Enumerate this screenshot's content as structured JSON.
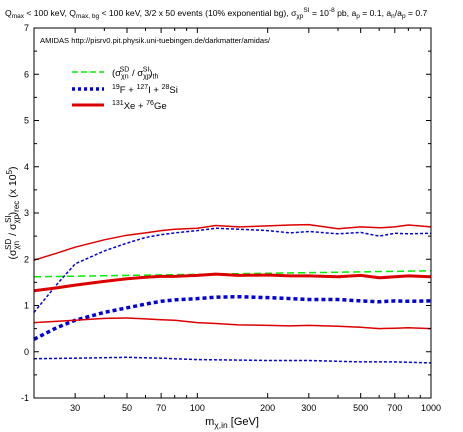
{
  "chart_data": {
    "type": "line",
    "title": "Q_max < 100 keV, Q_max,bg < 100 keV, 3/2 x 50 events (10% exponential bg), σ_χp^SI = 10^-8 pb, a_p = 0.1, a_n/a_p = 0.7",
    "title_parts": {
      "p1": "Q",
      "p1_sub": "max",
      "p2": " < 100 keV, Q",
      "p2_sub": "max, bg",
      "p3": " < 100 keV, 3/2 x 50 events (10% exponential bg), σ",
      "p3_sub": "χp",
      "p3_sup": "SI",
      "p4": " = 10",
      "p4_sup": "-8",
      "p5": " pb, a",
      "p5_sub": "p",
      "p6": " = 0.1, a",
      "p6_sub": "n",
      "p7": "/a",
      "p7_sub": "p",
      "p8": " = 0.7"
    },
    "annotation": "AMIDAS   http://pisrv0.pit.physik.uni-tuebingen.de/darkmatter/amidas/",
    "xlabel": {
      "base": "m",
      "sub": "χ,in",
      "rest": " [GeV]"
    },
    "ylabel": {
      "open": "(σ",
      "sub1": "χn",
      "sup1": "SD",
      "mid": " / σ",
      "sub2": "χp",
      "sup2": "SI",
      "close": ")",
      "sub3": "rec",
      "tail": " (x 10",
      "sup3": "5",
      "end": ")"
    },
    "x_scale": "log",
    "xlim": [
      20,
      1000
    ],
    "ylim": [
      -1,
      7
    ],
    "x_ticks": [
      30,
      50,
      70,
      100,
      200,
      300,
      500,
      700,
      1000
    ],
    "x_tick_labels": [
      "30",
      "50",
      "70",
      "100",
      "200",
      "300",
      "500",
      "700",
      "1000"
    ],
    "y_ticks": [
      -1,
      0,
      1,
      2,
      3,
      4,
      5,
      6,
      7
    ],
    "y_tick_labels": [
      "-1",
      "0",
      "1",
      "2",
      "3",
      "4",
      "5",
      "6",
      "7"
    ],
    "legend": {
      "placement": "top-left",
      "entries": [
        {
          "name_parts": [
            "(σ",
            "χn",
            "SD",
            " / σ",
            "χp",
            "SI",
            ")",
            "th"
          ],
          "color": "#00ee00",
          "style": "dashed"
        },
        {
          "name_parts": [
            "19",
            "F + ",
            "127",
            "I + ",
            "28",
            "Si"
          ],
          "color": "#0000dd",
          "style": "dotted"
        },
        {
          "name_parts": [
            "131",
            "Xe + ",
            "76",
            "Ge"
          ],
          "color": "#dd0000",
          "style": "solid"
        }
      ]
    },
    "series": [
      {
        "name": "(σχn^SD / σχp^SI)th",
        "color": "#00ee00",
        "style": "dashed",
        "width": 1.5,
        "x": [
          20,
          1000
        ],
        "y": [
          1.62,
          1.75
        ]
      },
      {
        "name": "19F + 127I + 28Si",
        "color": "#0000dd",
        "style": "dotted",
        "width": 3.5,
        "x": [
          20,
          25,
          30,
          40,
          50,
          60,
          70,
          80,
          100,
          120,
          150,
          200,
          250,
          300,
          400,
          500,
          600,
          700,
          800,
          1000
        ],
        "y": [
          0.27,
          0.52,
          0.68,
          0.85,
          0.95,
          1.03,
          1.09,
          1.12,
          1.15,
          1.18,
          1.19,
          1.17,
          1.15,
          1.13,
          1.13,
          1.1,
          1.08,
          1.1,
          1.09,
          1.1
        ]
      },
      {
        "name": "19F + 127I + 28Si upper",
        "color": "#0000dd",
        "style": "dotted",
        "width": 1.5,
        "x": [
          20,
          25,
          30,
          40,
          50,
          60,
          70,
          80,
          100,
          120,
          150,
          200,
          250,
          300,
          400,
          500,
          600,
          700,
          800,
          1000
        ],
        "y": [
          0.85,
          1.45,
          1.9,
          2.18,
          2.35,
          2.47,
          2.53,
          2.57,
          2.62,
          2.67,
          2.65,
          2.62,
          2.57,
          2.6,
          2.55,
          2.58,
          2.5,
          2.56,
          2.55,
          2.56
        ]
      },
      {
        "name": "19F + 127I + 28Si lower",
        "color": "#0000dd",
        "style": "dotted",
        "width": 1.5,
        "x": [
          20,
          30,
          50,
          70,
          100,
          150,
          200,
          300,
          500,
          700,
          1000
        ],
        "y": [
          -0.15,
          -0.14,
          -0.12,
          -0.14,
          -0.17,
          -0.18,
          -0.19,
          -0.19,
          -0.22,
          -0.22,
          -0.24
        ]
      },
      {
        "name": "131Xe + 76Ge",
        "color": "#dd0000",
        "style": "solid",
        "width": 3,
        "x": [
          20,
          25,
          30,
          40,
          50,
          60,
          70,
          80,
          100,
          120,
          150,
          200,
          250,
          300,
          400,
          500,
          600,
          700,
          800,
          1000
        ],
        "y": [
          1.32,
          1.38,
          1.44,
          1.52,
          1.58,
          1.61,
          1.63,
          1.63,
          1.65,
          1.68,
          1.65,
          1.66,
          1.64,
          1.64,
          1.62,
          1.65,
          1.6,
          1.62,
          1.64,
          1.62
        ]
      },
      {
        "name": "131Xe + 76Ge upper",
        "color": "#dd0000",
        "style": "solid",
        "width": 1.5,
        "x": [
          20,
          25,
          30,
          40,
          50,
          60,
          70,
          80,
          100,
          120,
          150,
          200,
          250,
          300,
          400,
          500,
          600,
          700,
          800,
          1000
        ],
        "y": [
          1.98,
          2.13,
          2.26,
          2.42,
          2.52,
          2.57,
          2.62,
          2.65,
          2.67,
          2.73,
          2.7,
          2.72,
          2.74,
          2.75,
          2.66,
          2.7,
          2.68,
          2.7,
          2.74,
          2.7
        ]
      },
      {
        "name": "131Xe + 76Ge lower",
        "color": "#dd0000",
        "style": "solid",
        "width": 1.5,
        "x": [
          20,
          30,
          40,
          50,
          60,
          70,
          80,
          100,
          120,
          150,
          200,
          250,
          300,
          400,
          500,
          600,
          700,
          800,
          1000
        ],
        "y": [
          0.63,
          0.68,
          0.72,
          0.73,
          0.71,
          0.69,
          0.68,
          0.63,
          0.61,
          0.58,
          0.57,
          0.56,
          0.57,
          0.55,
          0.53,
          0.5,
          0.51,
          0.52,
          0.5
        ]
      }
    ]
  }
}
